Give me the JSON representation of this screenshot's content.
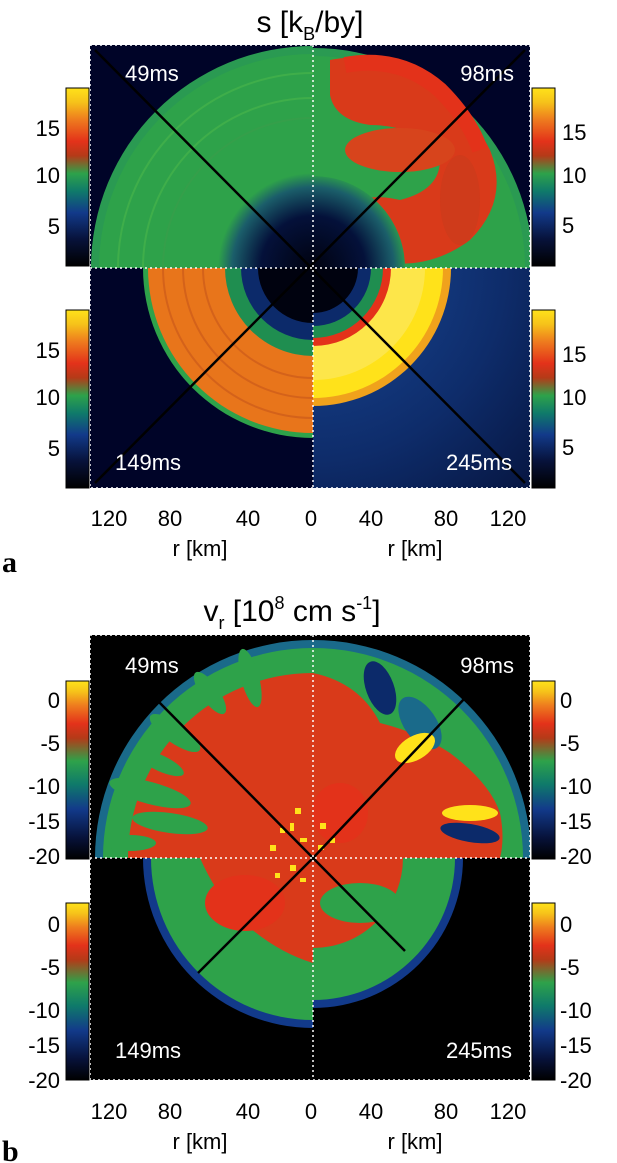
{
  "figure": {
    "panels": [
      {
        "letter": "a",
        "title_main": "s [k",
        "title_sub": "B",
        "title_tail": "/by]",
        "colorbar_ticks": [
          "15",
          "10",
          "5"
        ],
        "quadrant_times": [
          "49ms",
          "98ms",
          "149ms",
          "245ms"
        ],
        "x_ticks": [
          "120",
          "80",
          "40",
          "0",
          "40",
          "80",
          "120"
        ],
        "x_label_left": "r [km]",
        "x_label_right": "r [km]"
      },
      {
        "letter": "b",
        "title_main": "v",
        "title_sub": "r",
        "title_mid": " [10",
        "title_sup": "8",
        "title_unit": " cm s",
        "title_sup2": "-1",
        "title_tail": "]",
        "colorbar_ticks": [
          "0",
          "-5",
          "-10",
          "-15",
          "-20"
        ],
        "quadrant_times": [
          "49ms",
          "98ms",
          "149ms",
          "245ms"
        ],
        "x_ticks": [
          "120",
          "80",
          "40",
          "0",
          "40",
          "80",
          "120"
        ],
        "x_label_left": "r [km]",
        "x_label_right": "r [km]"
      }
    ],
    "colors": {
      "background": "#000428",
      "green": "#2ea24a",
      "orange": "#e8751b",
      "red": "#e3321a",
      "yellow": "#ffe21a"
    }
  }
}
